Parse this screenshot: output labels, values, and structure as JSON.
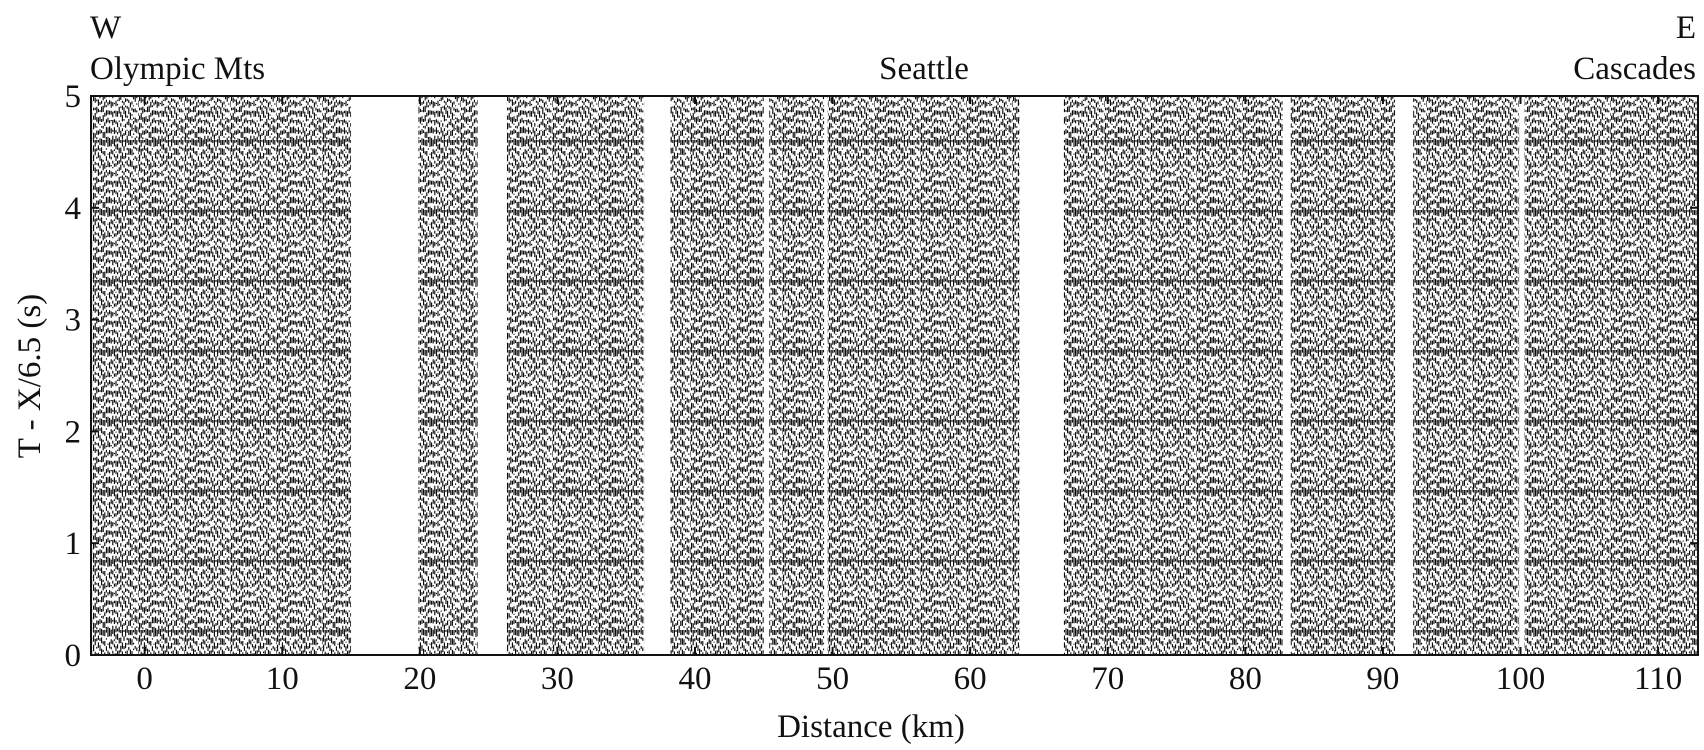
{
  "chart_data": {
    "type": "record-section",
    "west_label": "W",
    "east_label": "E",
    "annotations": [
      "Olympic Mts",
      "Seattle",
      "Cascades"
    ],
    "xlabel": "Distance (km)",
    "ylabel": "T - X/6.5 (s)",
    "xlim": [
      -3.9,
      112.9
    ],
    "xticks": [
      0,
      10,
      20,
      30,
      40,
      50,
      60,
      70,
      80,
      90,
      100,
      110
    ],
    "ylim": [
      0,
      5
    ],
    "yticks": [
      0,
      1,
      2,
      3,
      4,
      5
    ],
    "color": "#000000",
    "segments": [
      [
        -3.8,
        15.0
      ],
      [
        19.9,
        24.2
      ],
      [
        26.3,
        36.3
      ],
      [
        38.2,
        45.0
      ],
      [
        45.4,
        49.4
      ],
      [
        49.6,
        63.6
      ],
      [
        66.8,
        82.7
      ],
      [
        83.3,
        90.9
      ],
      [
        92.2,
        99.9
      ],
      [
        100.3,
        112.9
      ]
    ]
  }
}
